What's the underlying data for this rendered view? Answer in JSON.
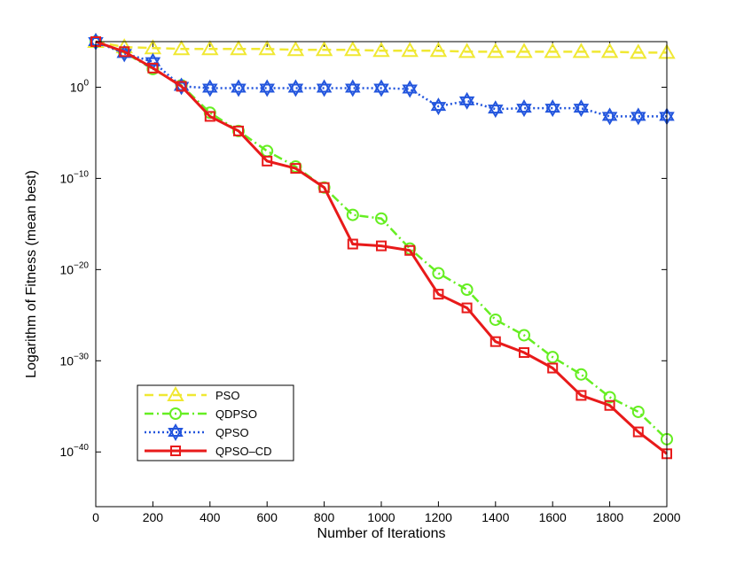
{
  "chart_data": {
    "type": "line",
    "title": "",
    "xlabel": "Number of Iterations",
    "ylabel": "Logarithm of Fitness (mean best)",
    "xlim": [
      0,
      2000
    ],
    "ylim_log10": [
      -46,
      5
    ],
    "yscale": "log",
    "x_ticks": [
      0,
      200,
      400,
      600,
      800,
      1000,
      1200,
      1400,
      1600,
      1800,
      2000
    ],
    "x_tick_labels": [
      "0",
      "200",
      "400",
      "600",
      "800",
      "1000",
      "1200",
      "1400",
      "1600",
      "1800",
      "2000"
    ],
    "y_ticks_log10": [
      0,
      -10,
      -20,
      -30,
      -40
    ],
    "y_tick_labels": [
      {
        "base": "10",
        "exp": "0"
      },
      {
        "base": "10",
        "exp": "−10"
      },
      {
        "base": "10",
        "exp": "−20"
      },
      {
        "base": "10",
        "exp": "−30"
      },
      {
        "base": "10",
        "exp": "−40"
      }
    ],
    "legend_position": "lower-left",
    "x": [
      0,
      100,
      200,
      300,
      400,
      500,
      600,
      700,
      800,
      900,
      1000,
      1100,
      1200,
      1300,
      1400,
      1500,
      1600,
      1700,
      1800,
      1900,
      2000
    ],
    "series": [
      {
        "name": "PSO",
        "color": "#f0e832",
        "style": "dashed",
        "marker": "triangle",
        "log10_values": [
          5,
          4.4,
          4.3,
          4.2,
          4.2,
          4.2,
          4.2,
          4.1,
          4.1,
          4.1,
          4.0,
          4.0,
          4.0,
          3.9,
          3.9,
          3.9,
          3.9,
          3.9,
          3.9,
          3.8,
          3.8
        ]
      },
      {
        "name": "QDPSO",
        "color": "#66ee22",
        "style": "dashdot",
        "marker": "circle",
        "log10_values": [
          5,
          3.8,
          2,
          0.2,
          -2.8,
          -4.8,
          -7,
          -8.7,
          -11,
          -14,
          -14.4,
          -17.7,
          -20.4,
          -22.2,
          -25.5,
          -27.2,
          -29.6,
          -31.5,
          -34,
          -35.6,
          -38.6
        ]
      },
      {
        "name": "QPSO",
        "color": "#2255dd",
        "style": "dotted",
        "marker": "star",
        "log10_values": [
          5,
          3.7,
          2.8,
          0.1,
          -0.1,
          -0.1,
          -0.1,
          -0.1,
          -0.1,
          -0.1,
          -0.1,
          -0.2,
          -2.1,
          -1.5,
          -2.4,
          -2.3,
          -2.3,
          -2.3,
          -3.2,
          -3.2,
          -3.2
        ]
      },
      {
        "name": "QPSO–CD",
        "color": "#e81a1a",
        "style": "solid",
        "marker": "square",
        "log10_values": [
          5,
          3.9,
          2.1,
          0.1,
          -3.2,
          -4.8,
          -8.1,
          -8.9,
          -11,
          -17.2,
          -17.4,
          -17.9,
          -22.7,
          -24.2,
          -27.9,
          -29.1,
          -30.8,
          -33.8,
          -34.9,
          -37.8,
          -40.2
        ]
      }
    ]
  }
}
